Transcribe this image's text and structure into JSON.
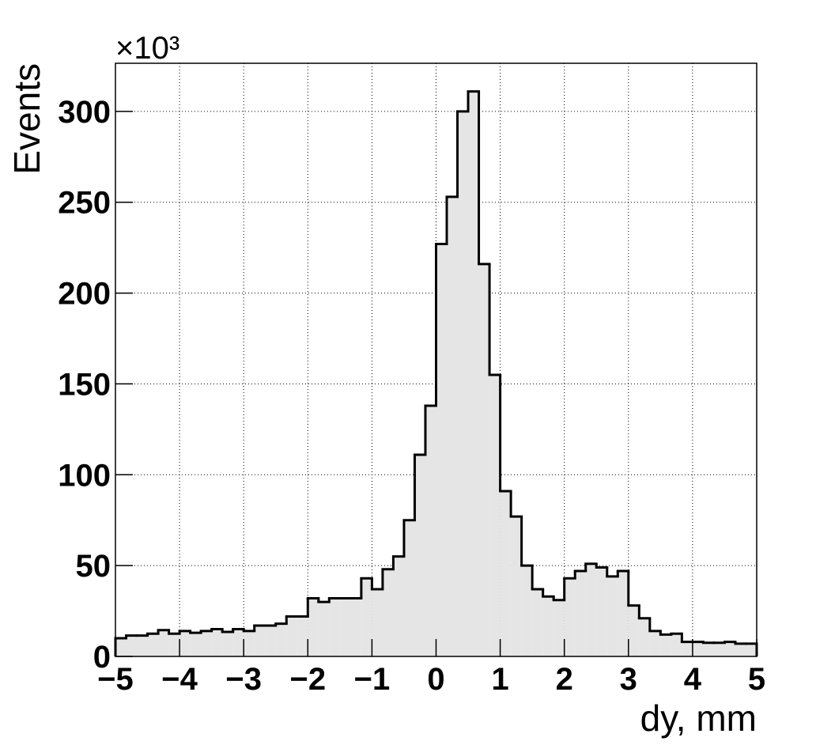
{
  "chart_data": {
    "type": "histogram",
    "x_label": "dy, mm",
    "y_label": "Events",
    "y_multiplier": "×10³",
    "bins": [
      -5,
      -4.8333,
      -4.6667,
      -4.5,
      -4.3333,
      -4.1667,
      -4,
      -3.8333,
      -3.6667,
      -3.5,
      -3.3333,
      -3.1667,
      -3,
      -2.8333,
      -2.6667,
      -2.5,
      -2.3333,
      -2.1667,
      -2,
      -1.8333,
      -1.6667,
      -1.5,
      -1.3333,
      -1.1667,
      -1,
      -0.8333,
      -0.6667,
      -0.5,
      -0.3333,
      -0.1667,
      0,
      0.1667,
      0.3333,
      0.5,
      0.6667,
      0.8333,
      1,
      1.1667,
      1.3333,
      1.5,
      1.6667,
      1.8333,
      2,
      2.1667,
      2.3333,
      2.5,
      2.6667,
      2.8333,
      3,
      3.1667,
      3.3333,
      3.5,
      3.6667,
      3.8333,
      4,
      4.1667,
      4.3333,
      4.5,
      4.6667,
      4.8333,
      5
    ],
    "values": [
      10,
      11.5,
      11.5,
      12.5,
      14.5,
      12.5,
      14,
      13,
      14,
      15,
      13.5,
      15,
      14,
      17,
      17,
      18,
      22,
      22,
      32,
      30,
      32,
      32,
      32,
      43,
      37,
      48,
      55,
      75,
      111,
      138,
      227,
      253,
      300,
      311,
      216,
      155,
      91,
      77,
      50,
      37,
      33,
      31,
      43,
      47,
      51,
      49,
      44,
      47,
      28,
      21,
      14,
      12,
      12.5,
      8,
      8,
      7.5,
      7.5,
      8,
      7,
      7
    ],
    "color": "#e5e5e5",
    "line_color": "#000000",
    "xlim": [
      -5,
      5
    ],
    "xticks": [
      {
        "value": -5,
        "label": "−5"
      },
      {
        "value": -4,
        "label": "−4"
      },
      {
        "value": -3,
        "label": "−3"
      },
      {
        "value": -2,
        "label": "−2"
      },
      {
        "value": -1,
        "label": "−1"
      },
      0,
      1,
      2,
      3,
      4,
      5
    ],
    "ylim": [
      0,
      326.5
    ],
    "yticks": [
      0,
      50,
      100,
      150,
      200,
      250,
      300
    ],
    "grid": true
  }
}
